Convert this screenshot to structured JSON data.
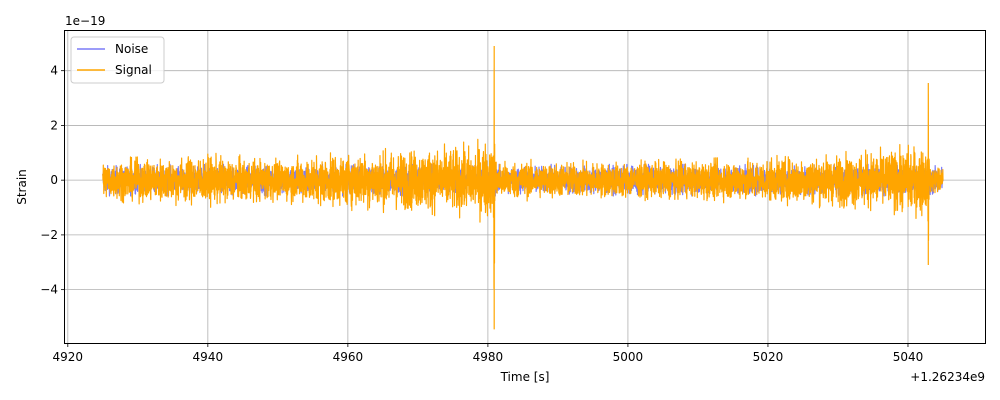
{
  "chart_data": {
    "type": "line",
    "title": "",
    "xlabel": "Time [s]",
    "ylabel": "Strain",
    "x_offset_text": "+1.26234e9",
    "y_scale_text": "1e−19",
    "xlim": [
      4919.6,
      5051.0
    ],
    "ylim": [
      -5.95,
      5.45
    ],
    "x_ticks": [
      4920,
      4940,
      4960,
      4980,
      5000,
      5020,
      5040
    ],
    "x_tick_labels": [
      "4920",
      "4940",
      "4960",
      "4980",
      "5000",
      "5020",
      "5040"
    ],
    "y_ticks": [
      -4,
      -2,
      0,
      2,
      4
    ],
    "y_tick_labels": [
      "−4",
      "−2",
      "0",
      "2",
      "4"
    ],
    "grid": true,
    "legend_position": "upper-left",
    "series": [
      {
        "name": "Noise",
        "color": "#7b7bf7",
        "x_range": [
          4925.0,
          5045.0
        ],
        "typical_amplitude": 0.55
      },
      {
        "name": "Signal",
        "color": "#ffa500",
        "x_range": [
          4925.0,
          5045.0
        ],
        "typical_amplitude": 0.65,
        "envelope": [
          {
            "x": 4925.0,
            "amp": 0.75
          },
          {
            "x": 4932.0,
            "amp": 0.85
          },
          {
            "x": 4940.0,
            "amp": 0.95
          },
          {
            "x": 4950.0,
            "amp": 0.8
          },
          {
            "x": 4960.0,
            "amp": 1.05
          },
          {
            "x": 4970.0,
            "amp": 1.2
          },
          {
            "x": 4978.0,
            "amp": 1.35
          },
          {
            "x": 4980.0,
            "amp": 1.6
          },
          {
            "x": 4981.5,
            "amp": 0.75
          },
          {
            "x": 4990.0,
            "amp": 0.7
          },
          {
            "x": 5000.0,
            "amp": 0.7
          },
          {
            "x": 5010.0,
            "amp": 0.75
          },
          {
            "x": 5020.0,
            "amp": 0.85
          },
          {
            "x": 5030.0,
            "amp": 1.0
          },
          {
            "x": 5038.0,
            "amp": 1.2
          },
          {
            "x": 5042.5,
            "amp": 1.4
          },
          {
            "x": 5043.2,
            "amp": 0.55
          },
          {
            "x": 5045.0,
            "amp": 0.5
          }
        ],
        "events": [
          {
            "x": 4980.9,
            "peak_max": 4.9,
            "peak_min": -5.45
          },
          {
            "x": 5042.9,
            "peak_max": 3.55,
            "peak_min": -3.1
          }
        ]
      }
    ]
  }
}
